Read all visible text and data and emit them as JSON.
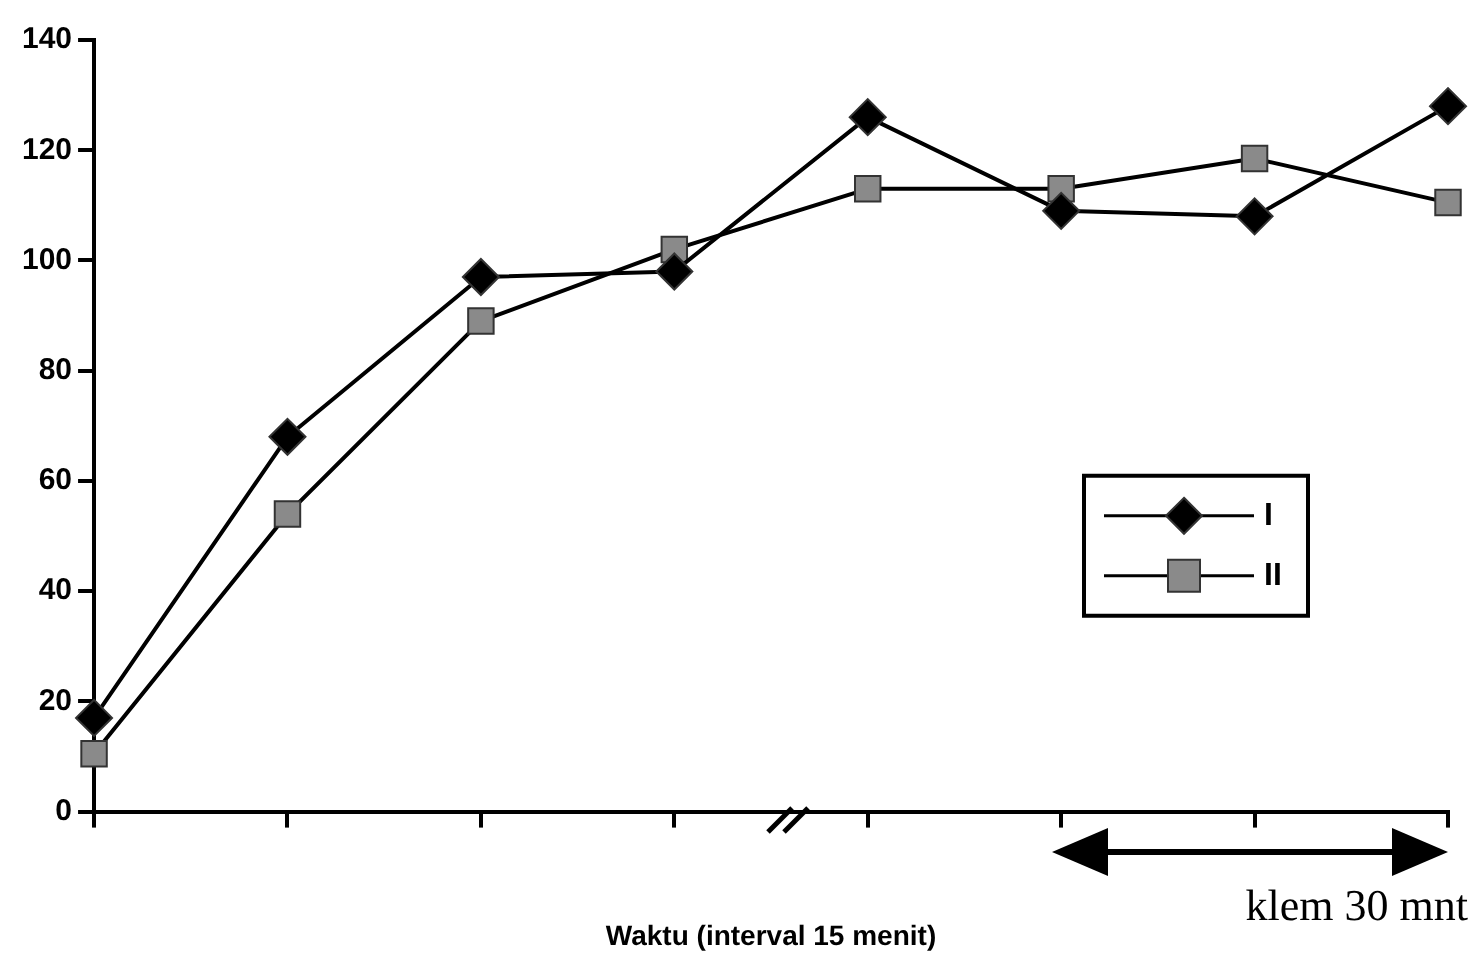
{
  "chart_data": {
    "type": "line",
    "xlabel": "Waktu (interval 15 menit)",
    "categories": [
      null,
      null,
      null,
      null,
      null,
      null,
      null,
      null
    ],
    "series": [
      {
        "name": "I",
        "color": "#000000",
        "marker": "diamond",
        "values": [
          17,
          68,
          97,
          98,
          126,
          109,
          108,
          128
        ]
      },
      {
        "name": "II",
        "color": "#8a8a8a",
        "marker": "square",
        "values": [
          10.5,
          54,
          89,
          102,
          113,
          113,
          118.5,
          110.5
        ]
      }
    ],
    "ylim": [
      0,
      140
    ],
    "yticks": [
      0,
      20,
      40,
      60,
      80,
      100,
      120,
      140
    ],
    "grid": false,
    "legend": "right",
    "line_style": "solid",
    "annotations": [
      "klem 30 mnt"
    ]
  }
}
